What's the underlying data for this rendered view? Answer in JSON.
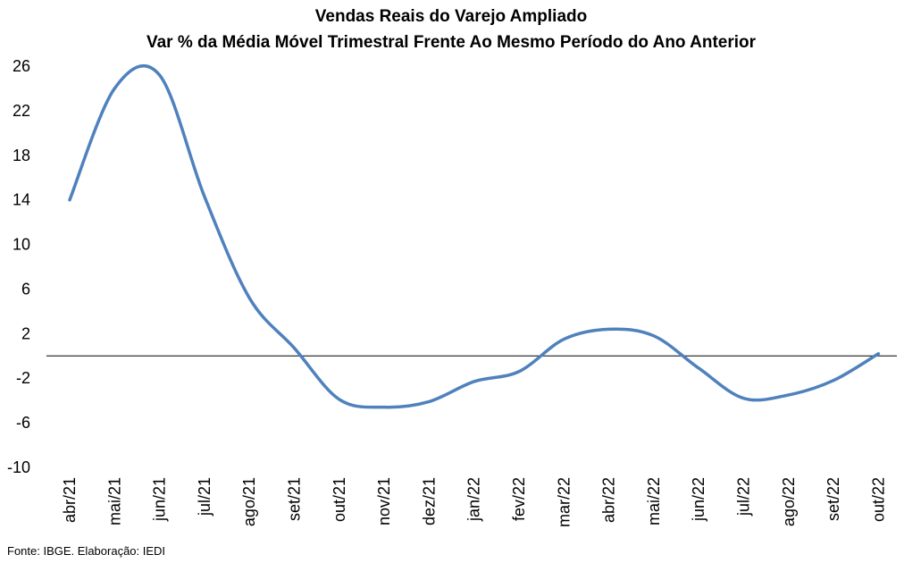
{
  "chart_data": {
    "type": "line",
    "title": "Vendas Reais do Varejo Ampliado",
    "subtitle": "Var % da Média Móvel Trimestral Frente Ao Mesmo Período do Ano Anterior",
    "xlabel": "",
    "ylabel": "",
    "ylim": [
      -10,
      26
    ],
    "yticks": [
      26,
      22,
      18,
      14,
      10,
      6,
      2,
      -2,
      -6,
      -10
    ],
    "categories": [
      "abr/21",
      "mai/21",
      "jun/21",
      "jul/21",
      "ago/21",
      "set/21",
      "out/21",
      "nov/21",
      "dez/21",
      "jan/22",
      "fev/22",
      "mar/22",
      "abr/22",
      "mai/22",
      "jun/22",
      "jul/22",
      "ago/22",
      "set/22",
      "out/22"
    ],
    "series": [
      {
        "color": "#4f81bd",
        "values": [
          14.0,
          24.0,
          25.2,
          14.3,
          5.2,
          0.7,
          -3.9,
          -4.6,
          -4.1,
          -2.3,
          -1.4,
          1.5,
          2.4,
          1.8,
          -1.1,
          -3.8,
          -3.5,
          -2.2,
          0.2
        ]
      }
    ],
    "zero_line": true,
    "grid": false,
    "legend": "none"
  },
  "source": "Fonte: IBGE. Elaboração: IEDI"
}
